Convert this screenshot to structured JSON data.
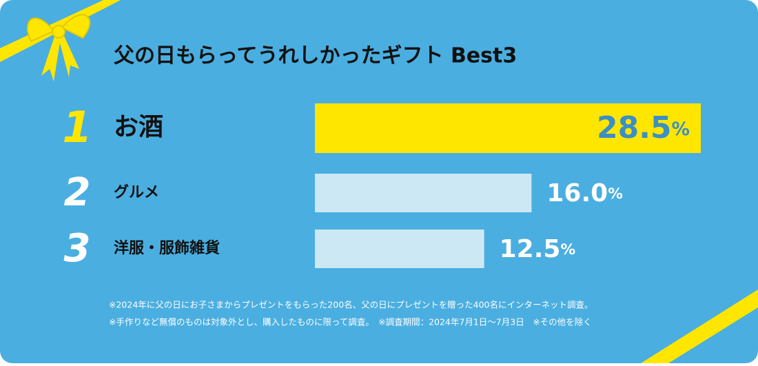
{
  "chart_data": {
    "type": "bar",
    "orientation": "horizontal",
    "title": "父の日もらってうれしかったギフト Best3",
    "ranks": [
      "1",
      "2",
      "3"
    ],
    "categories": [
      "お酒",
      "グルメ",
      "洋服・服飾雑貨"
    ],
    "values": [
      28.5,
      16.0,
      12.5
    ],
    "value_labels": [
      "28.5%",
      "16.0%",
      "12.5%"
    ],
    "colors": [
      "#ffe600",
      "#cde8f5",
      "#cde8f5"
    ],
    "xlim": [
      0,
      28.5
    ],
    "notes": [
      "※2024年に父の日にお子さまからプレゼントをもらった200名、父の日にプレゼントを贈った400名にインターネット調査。",
      "※手作りなど無償のものは対象外とし、購入したものに限って調査。　※調査期間：2024年7月1日〜7月3日　※その他を除く"
    ]
  }
}
